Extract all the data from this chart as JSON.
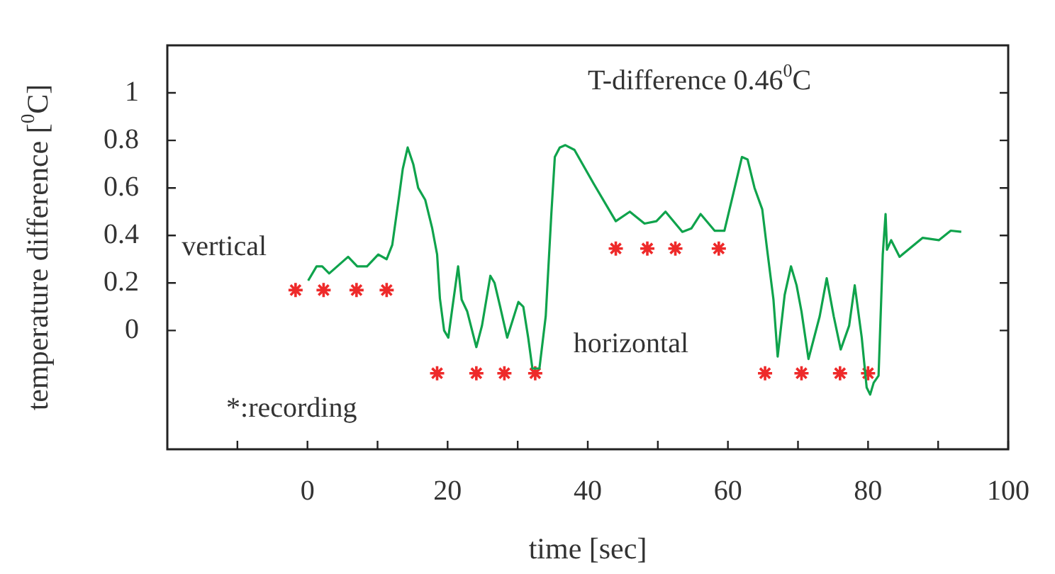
{
  "chart_data": {
    "type": "line",
    "xlabel": "time [sec]",
    "ylabel": "temperature difference [$^{0}$C]",
    "xlim": [
      -20,
      100
    ],
    "ylim": [
      -0.5,
      1.2
    ],
    "xticks": [
      {
        "value": -10,
        "label": null
      },
      0,
      {
        "value": 10,
        "label": null
      },
      20,
      {
        "value": 30,
        "label": null
      },
      40,
      {
        "value": 50,
        "label": null
      },
      60,
      {
        "value": 70,
        "label": null
      },
      80,
      {
        "value": 90,
        "label": null
      },
      100
    ],
    "yticks": [
      0,
      0.2,
      0.4,
      0.6,
      0.8,
      1
    ],
    "grid": false,
    "legend": false,
    "annotations": [
      "T-difference 0.46$^{0}$C",
      "*:recording",
      "vertical",
      "horizontal"
    ],
    "series": [
      {
        "color": "#0fa34c",
        "marker": "none",
        "line_style": "solid",
        "x": [
          0.1,
          1.3,
          2.1,
          3.1,
          5.8,
          7.1,
          8.5,
          10.1,
          11.3,
          12.1,
          13.1,
          13.6,
          14.3,
          15.1,
          15.8,
          16.8,
          17.8,
          18.5,
          18.9,
          19.5,
          20.1,
          20.7,
          21.5,
          22,
          22.8,
          24.1,
          24.9,
          26.1,
          26.7,
          27.5,
          28.5,
          30.1,
          30.8,
          31.5,
          32.1,
          33.1,
          34,
          34.8,
          35.3,
          36,
          36.8,
          38.1,
          40.8,
          44,
          46,
          48.1,
          49.8,
          51.1,
          53.5,
          54.8,
          56.1,
          58.1,
          59.5,
          60.8,
          62,
          62.8,
          63.8,
          64.9,
          65.6,
          66.5,
          67.1,
          68.1,
          69,
          69.8,
          70.5,
          71.5,
          73.1,
          74.1,
          75.1,
          76.1,
          77.3,
          78.1,
          79.1,
          79.8,
          80.3,
          80.8,
          81.5,
          82.1,
          82.5,
          82.7,
          83.3,
          84.5,
          87.8,
          90.1,
          91.8,
          93.3
        ],
        "values": [
          0.21,
          0.27,
          0.27,
          0.24,
          0.31,
          0.27,
          0.27,
          0.32,
          0.3,
          0.36,
          0.57,
          0.68,
          0.77,
          0.7,
          0.6,
          0.55,
          0.43,
          0.32,
          0.135,
          0,
          -0.03,
          0.1,
          0.27,
          0.13,
          0.08,
          -0.07,
          0.02,
          0.23,
          0.2,
          0.1,
          -0.03,
          0.12,
          0.1,
          -0.03,
          -0.16,
          -0.16,
          0.06,
          0.49,
          0.73,
          0.77,
          0.78,
          0.76,
          0.62,
          0.46,
          0.5,
          0.45,
          0.46,
          0.5,
          0.415,
          0.43,
          0.49,
          0.42,
          0.42,
          0.58,
          0.73,
          0.72,
          0.6,
          0.51,
          0.34,
          0.13,
          -0.11,
          0.15,
          0.27,
          0.19,
          0.08,
          -0.12,
          0.06,
          0.22,
          0.06,
          -0.08,
          0.02,
          0.19,
          -0.03,
          -0.24,
          -0.27,
          -0.22,
          -0.19,
          0.32,
          0.49,
          0.34,
          0.38,
          0.31,
          0.39,
          0.38,
          0.42,
          0.415
        ]
      },
      {
        "type": "scatter",
        "color": "#ee2a2a",
        "marker": "cross",
        "x": [
          -1.7,
          2.3,
          7,
          11.3,
          18.5,
          24.1,
          28.1,
          32.5,
          44,
          48.5,
          52.5,
          58.7,
          65.3,
          70.5,
          76,
          80
        ],
        "values": [
          0.17,
          0.17,
          0.17,
          0.17,
          -0.18,
          -0.18,
          -0.18,
          -0.18,
          0.345,
          0.345,
          0.345,
          0.345,
          -0.18,
          -0.18,
          -0.18,
          -0.18
        ]
      }
    ]
  }
}
